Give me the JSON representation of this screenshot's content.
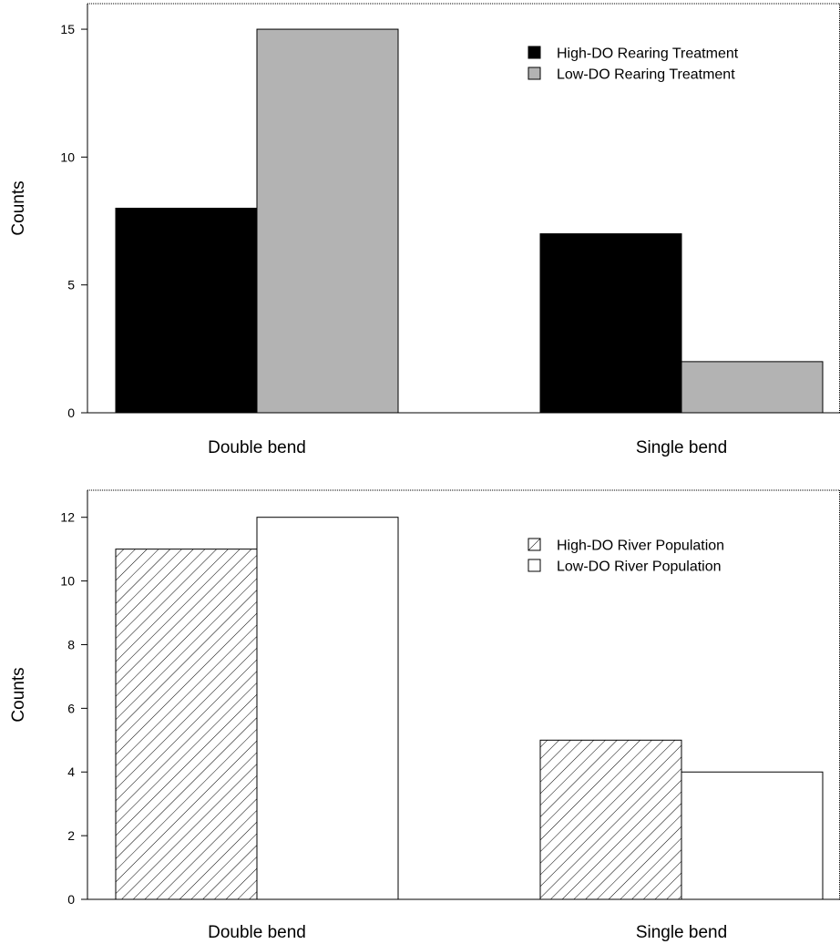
{
  "chart_data": [
    {
      "type": "bar",
      "categories": [
        "Double bend",
        "Single bend"
      ],
      "ylabel": "Counts",
      "xlabel": "",
      "ylim": [
        0,
        16
      ],
      "yticks": [
        0,
        5,
        10,
        15
      ],
      "legend_position": "top-right",
      "series": [
        {
          "name": "High-DO Rearing Treatment",
          "values": [
            8,
            7
          ],
          "fill": "#000000",
          "pattern": "solid"
        },
        {
          "name": "Low-DO Rearing Treatment",
          "values": [
            15,
            2
          ],
          "fill": "#b3b3b3",
          "pattern": "solid"
        }
      ]
    },
    {
      "type": "bar",
      "categories": [
        "Double bend",
        "Single bend"
      ],
      "ylabel": "Counts",
      "xlabel": "",
      "ylim": [
        0,
        12.85
      ],
      "yticks": [
        0,
        2,
        4,
        6,
        8,
        10,
        12
      ],
      "legend_position": "top-right",
      "series": [
        {
          "name": "High-DO River Population",
          "values": [
            11,
            5
          ],
          "fill": "#ffffff",
          "pattern": "hatch"
        },
        {
          "name": "Low-DO River Population",
          "values": [
            12,
            4
          ],
          "fill": "#ffffff",
          "pattern": "solid"
        }
      ]
    }
  ]
}
